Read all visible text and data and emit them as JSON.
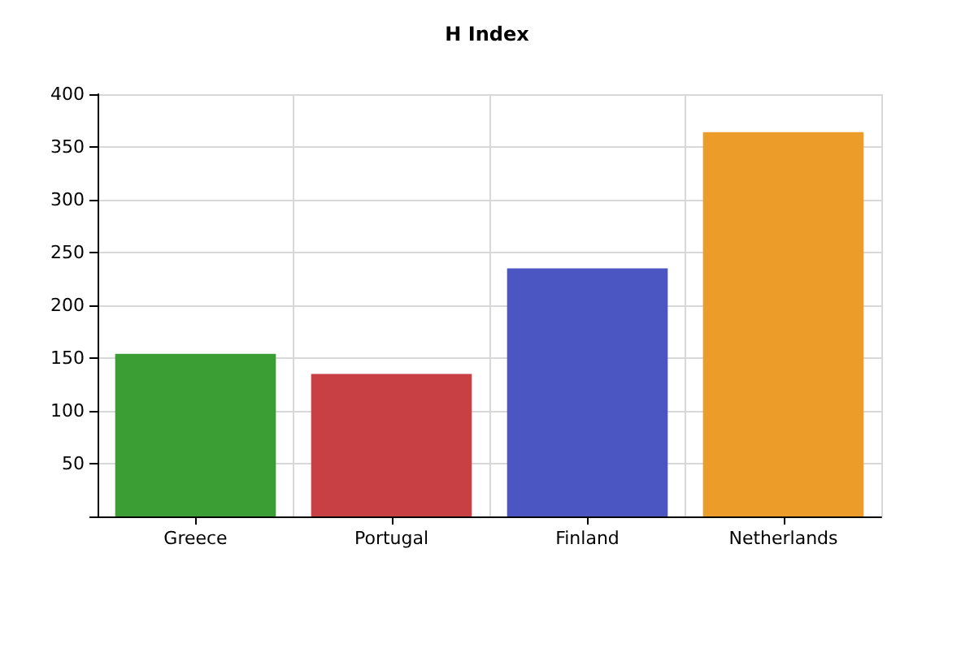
{
  "chart_data": {
    "type": "bar",
    "title": "H Index",
    "categories": [
      "Greece",
      "Portugal",
      "Finland",
      "Netherlands"
    ],
    "values": [
      154,
      135,
      235,
      364
    ],
    "colors": [
      "#3a9e35",
      "#c94044",
      "#4b56c2",
      "#ec9d29"
    ],
    "ylim": [
      0,
      400
    ],
    "yticks": [
      {
        "value": 0,
        "label": null
      },
      50,
      100,
      150,
      200,
      250,
      300,
      350,
      400
    ],
    "grid": true
  }
}
